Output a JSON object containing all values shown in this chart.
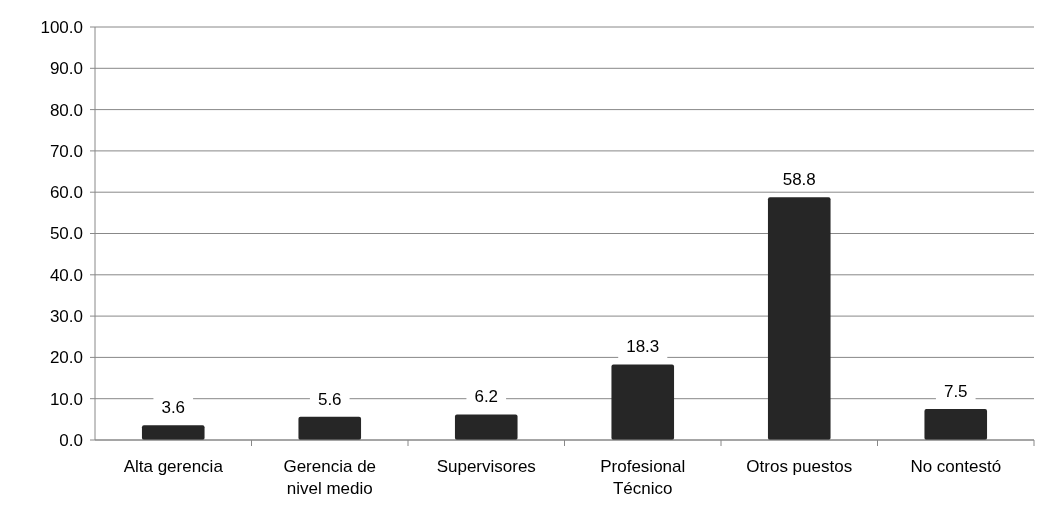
{
  "chart_data": {
    "type": "bar",
    "categories": [
      "Alta gerencia",
      "Gerencia de nivel medio",
      "Supervisores",
      "Profesional Técnico",
      "Otros puestos",
      "No contestó"
    ],
    "values": [
      3.6,
      5.6,
      6.2,
      18.3,
      58.8,
      7.5
    ],
    "color": "#262626",
    "data_labels": true,
    "ylim": [
      0,
      100
    ],
    "yticks": [
      {
        "value": 0,
        "label": "0.0"
      },
      {
        "value": 10,
        "label": "10.0"
      },
      {
        "value": 20,
        "label": "20.0"
      },
      {
        "value": 30,
        "label": "30.0"
      },
      {
        "value": 40,
        "label": "40.0"
      },
      {
        "value": 50,
        "label": "50.0"
      },
      {
        "value": 60,
        "label": "60.0"
      },
      {
        "value": 70,
        "label": "70.0"
      },
      {
        "value": 80,
        "label": "80.0"
      },
      {
        "value": 90,
        "label": "90.0"
      },
      {
        "value": 100,
        "label": "100.0"
      }
    ],
    "grid": "y"
  }
}
